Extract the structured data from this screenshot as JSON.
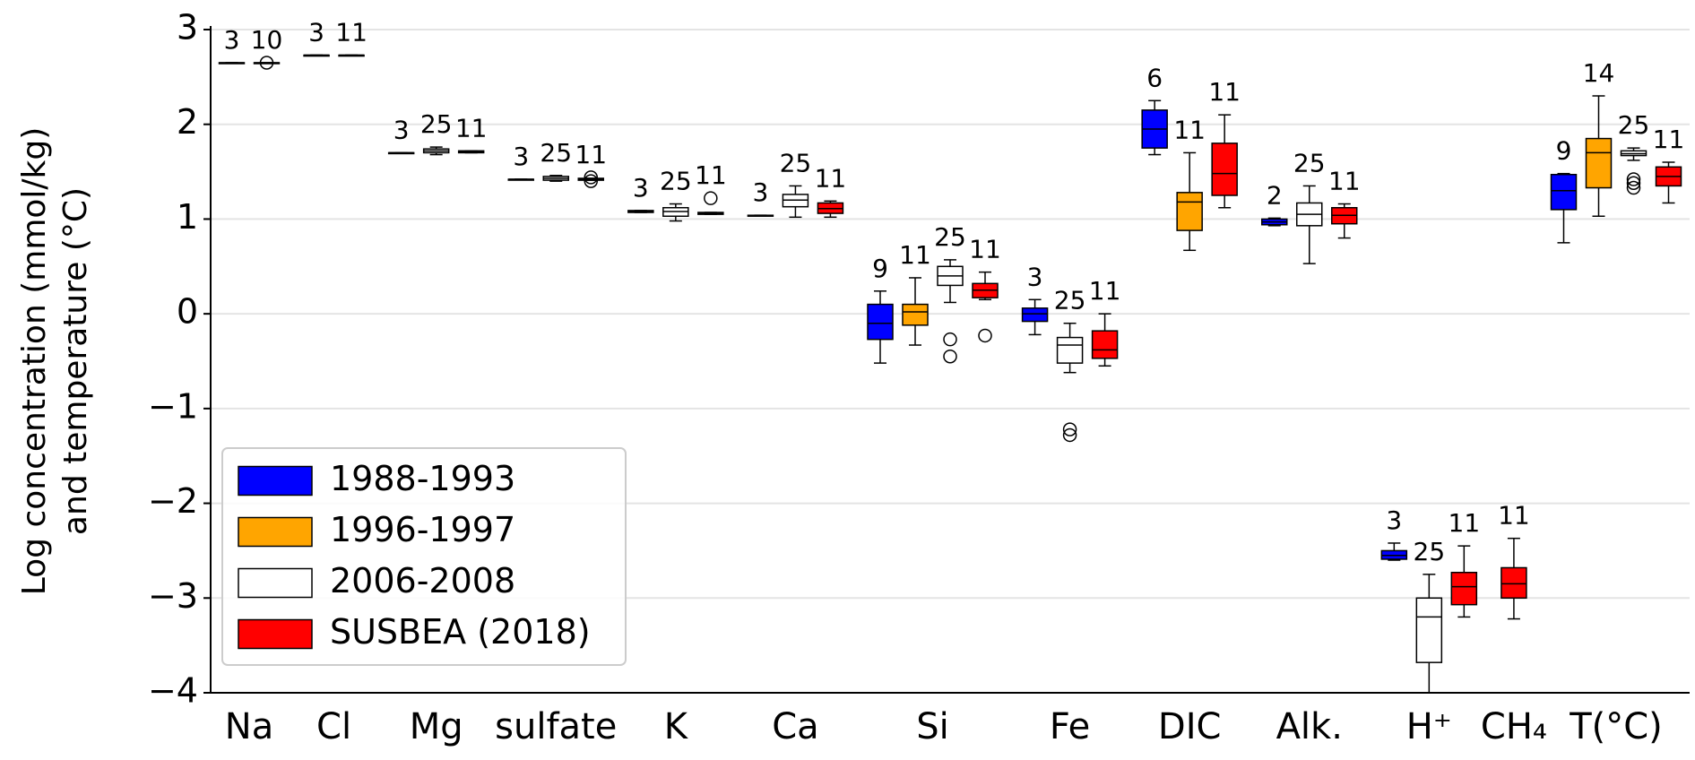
{
  "chart_data": {
    "type": "box",
    "ylabel": [
      "Log concentration (mmol/kg)",
      "and temperature (°C)"
    ],
    "ylim": [
      -4,
      3
    ],
    "yticks": [
      {
        "value": -4,
        "label": "−4"
      },
      {
        "value": -3,
        "label": "−3"
      },
      {
        "value": -2,
        "label": "−2"
      },
      {
        "value": -1,
        "label": "−1"
      },
      0,
      1,
      2,
      3
    ],
    "grid": true,
    "legend": "lower left",
    "categories": [
      "Na",
      "Cl",
      "Mg",
      "sulfate",
      "K",
      "Ca",
      "Si",
      "Fe",
      "DIC",
      "Alk.",
      "H⁺",
      "CH₄",
      "T(°C)"
    ],
    "series": [
      {
        "name": "1988-1993",
        "color": "#0000ff",
        "boxes": [
          {
            "n": 3,
            "whislo": 2.65,
            "q1": 2.65,
            "med": 2.65,
            "q3": 2.65,
            "whishi": 2.65,
            "fliers": []
          },
          {
            "n": 3,
            "whislo": 2.73,
            "q1": 2.73,
            "med": 2.73,
            "q3": 2.73,
            "whishi": 2.73,
            "fliers": []
          },
          {
            "n": 3,
            "whislo": 1.7,
            "q1": 1.7,
            "med": 1.7,
            "q3": 1.7,
            "whishi": 1.7,
            "fliers": []
          },
          {
            "n": 3,
            "whislo": 1.42,
            "q1": 1.42,
            "med": 1.42,
            "q3": 1.42,
            "whishi": 1.42,
            "fliers": []
          },
          {
            "n": 3,
            "whislo": 1.07,
            "q1": 1.07,
            "med": 1.08,
            "q3": 1.09,
            "whishi": 1.09,
            "fliers": []
          },
          {
            "n": 3,
            "whislo": 1.04,
            "q1": 1.04,
            "med": 1.04,
            "q3": 1.04,
            "whishi": 1.04,
            "fliers": []
          },
          {
            "n": 9,
            "whislo": -0.52,
            "q1": -0.27,
            "med": -0.1,
            "q3": 0.1,
            "whishi": 0.24,
            "fliers": []
          },
          {
            "n": 3,
            "whislo": -0.22,
            "q1": -0.08,
            "med": 0,
            "q3": 0.06,
            "whishi": 0.15,
            "fliers": []
          },
          {
            "n": 6,
            "whislo": 1.68,
            "q1": 1.75,
            "med": 1.95,
            "q3": 2.15,
            "whishi": 2.25,
            "fliers": []
          },
          {
            "n": 2,
            "whislo": 0.93,
            "q1": 0.94,
            "med": 0.97,
            "q3": 1.0,
            "whishi": 1.01,
            "fliers": []
          },
          {
            "n": 3,
            "whislo": -2.6,
            "q1": -2.59,
            "med": -2.55,
            "q3": -2.5,
            "whishi": -2.42,
            "fliers": []
          },
          null,
          {
            "n": 9,
            "whislo": 0.75,
            "q1": 1.1,
            "med": 1.3,
            "q3": 1.47,
            "whishi": 1.48,
            "fliers": []
          }
        ]
      },
      {
        "name": "1996-1997",
        "color": "#ffa500",
        "boxes": [
          null,
          null,
          null,
          null,
          null,
          null,
          {
            "n": 11,
            "whislo": -0.33,
            "q1": -0.12,
            "med": 0.02,
            "q3": 0.1,
            "whishi": 0.38,
            "fliers": []
          },
          null,
          {
            "n": 11,
            "whislo": 0.67,
            "q1": 0.88,
            "med": 1.18,
            "q3": 1.28,
            "whishi": 1.7,
            "fliers": []
          },
          null,
          null,
          null,
          {
            "n": 14,
            "whislo": 1.03,
            "q1": 1.33,
            "med": 1.7,
            "q3": 1.85,
            "whishi": 2.3,
            "fliers": []
          }
        ]
      },
      {
        "name": "2006-2008",
        "color": "#ffffff",
        "boxes": [
          null,
          null,
          {
            "n": 25,
            "whislo": 1.68,
            "q1": 1.7,
            "med": 1.72,
            "q3": 1.74,
            "whishi": 1.76,
            "fliers": []
          },
          {
            "n": 25,
            "whislo": 1.4,
            "q1": 1.41,
            "med": 1.43,
            "q3": 1.45,
            "whishi": 1.46,
            "fliers": []
          },
          {
            "n": 25,
            "whislo": 0.98,
            "q1": 1.03,
            "med": 1.08,
            "q3": 1.12,
            "whishi": 1.16,
            "fliers": []
          },
          {
            "n": 25,
            "whislo": 1.02,
            "q1": 1.13,
            "med": 1.2,
            "q3": 1.26,
            "whishi": 1.35,
            "fliers": []
          },
          {
            "n": 25,
            "whislo": 0.12,
            "q1": 0.3,
            "med": 0.4,
            "q3": 0.5,
            "whishi": 0.57,
            "fliers": [
              -0.27,
              -0.45
            ]
          },
          {
            "n": 25,
            "whislo": -0.62,
            "q1": -0.52,
            "med": -0.33,
            "q3": -0.25,
            "whishi": -0.1,
            "fliers": [
              -1.22,
              -1.28
            ]
          },
          null,
          {
            "n": 25,
            "whislo": 0.53,
            "q1": 0.93,
            "med": 1.05,
            "q3": 1.17,
            "whishi": 1.35,
            "fliers": []
          },
          {
            "n": 25,
            "whislo": -4.0,
            "q1": -3.68,
            "med": -3.2,
            "q3": -3.0,
            "whishi": -2.75,
            "fliers": []
          },
          null,
          {
            "n": 25,
            "whislo": 1.62,
            "q1": 1.67,
            "med": 1.69,
            "q3": 1.72,
            "whishi": 1.75,
            "fliers": [
              1.42,
              1.38,
              1.33
            ]
          }
        ]
      },
      {
        "name": "SUSBEA (2018)",
        "color": "#ff0000",
        "boxes": [
          {
            "n": 10,
            "whislo": 2.65,
            "q1": 2.65,
            "med": 2.65,
            "q3": 2.65,
            "whishi": 2.65,
            "fliers": [
              2.65
            ]
          },
          {
            "n": 11,
            "whislo": 2.73,
            "q1": 2.73,
            "med": 2.73,
            "q3": 2.73,
            "whishi": 2.73,
            "fliers": []
          },
          {
            "n": 11,
            "whislo": 1.7,
            "q1": 1.7,
            "med": 1.71,
            "q3": 1.72,
            "whishi": 1.72,
            "fliers": []
          },
          {
            "n": 11,
            "whislo": 1.41,
            "q1": 1.41,
            "med": 1.42,
            "q3": 1.43,
            "whishi": 1.43,
            "fliers": [
              1.4,
              1.44
            ]
          },
          {
            "n": 11,
            "whislo": 1.05,
            "q1": 1.05,
            "med": 1.06,
            "q3": 1.07,
            "whishi": 1.07,
            "fliers": [
              1.22
            ]
          },
          {
            "n": 11,
            "whislo": 1.02,
            "q1": 1.06,
            "med": 1.11,
            "q3": 1.17,
            "whishi": 1.19,
            "fliers": []
          },
          {
            "n": 11,
            "whislo": 0.15,
            "q1": 0.17,
            "med": 0.25,
            "q3": 0.32,
            "whishi": 0.44,
            "fliers": [
              -0.23
            ]
          },
          {
            "n": 11,
            "whislo": -0.55,
            "q1": -0.47,
            "med": -0.38,
            "q3": -0.18,
            "whishi": 0.0,
            "fliers": []
          },
          {
            "n": 11,
            "whislo": 1.12,
            "q1": 1.25,
            "med": 1.48,
            "q3": 1.8,
            "whishi": 2.1,
            "fliers": []
          },
          {
            "n": 11,
            "whislo": 0.8,
            "q1": 0.95,
            "med": 1.04,
            "q3": 1.12,
            "whishi": 1.16,
            "fliers": []
          },
          {
            "n": 11,
            "whislo": -3.2,
            "q1": -3.07,
            "med": -2.88,
            "q3": -2.73,
            "whishi": -2.45,
            "fliers": []
          },
          {
            "n": 11,
            "whislo": -3.22,
            "q1": -3.0,
            "med": -2.85,
            "q3": -2.68,
            "whishi": -2.37,
            "fliers": []
          },
          {
            "n": 11,
            "whislo": 1.17,
            "q1": 1.35,
            "med": 1.45,
            "q3": 1.55,
            "whishi": 1.6,
            "fliers": []
          }
        ]
      }
    ]
  }
}
